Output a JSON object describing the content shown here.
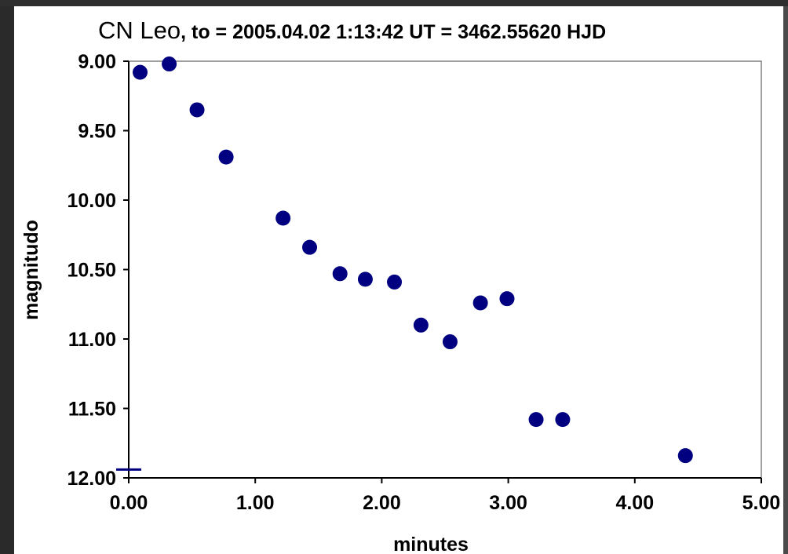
{
  "chart_data": {
    "type": "scatter",
    "title": {
      "main": "CN Leo",
      "sub": ", to = 2005.04.02 1:13:42 UT = 3462.55620 HJD"
    },
    "xlabel": "minutes",
    "ylabel": "magnitudo",
    "xlim": [
      0,
      5
    ],
    "ylim": [
      9,
      12
    ],
    "y_inverted": true,
    "grid": false,
    "x_ticks": [
      "0.00",
      "1.00",
      "2.00",
      "3.00",
      "4.00",
      "5.00"
    ],
    "y_ticks": [
      "9.00",
      "9.50",
      "10.00",
      "10.50",
      "11.00",
      "11.50",
      "12.00"
    ],
    "marker_color": "#000080",
    "points": [
      {
        "x": 0.09,
        "y": 9.08
      },
      {
        "x": 0.32,
        "y": 9.02
      },
      {
        "x": 0.54,
        "y": 9.35
      },
      {
        "x": 0.77,
        "y": 9.69
      },
      {
        "x": 1.22,
        "y": 10.13
      },
      {
        "x": 1.43,
        "y": 10.34
      },
      {
        "x": 1.67,
        "y": 10.53
      },
      {
        "x": 1.87,
        "y": 10.57
      },
      {
        "x": 2.1,
        "y": 10.59
      },
      {
        "x": 2.31,
        "y": 10.9
      },
      {
        "x": 2.54,
        "y": 11.02
      },
      {
        "x": 2.78,
        "y": 10.74
      },
      {
        "x": 2.99,
        "y": 10.71
      },
      {
        "x": 3.22,
        "y": 11.58
      },
      {
        "x": 3.43,
        "y": 11.58
      },
      {
        "x": 4.4,
        "y": 11.84
      }
    ]
  }
}
